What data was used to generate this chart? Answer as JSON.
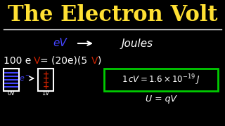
{
  "bg_color": "#000000",
  "title_text": "The Electron Volt",
  "title_color": "#FFE033",
  "title_fontsize": 22,
  "line_color": "#FFFFFF",
  "text_color": "#FFFFFF",
  "blue_color": "#4444FF",
  "red_color": "#CC2200",
  "green_color": "#00CC00",
  "box_color": "#00CC00",
  "caption_0v": "0V",
  "caption_1v": "1V"
}
